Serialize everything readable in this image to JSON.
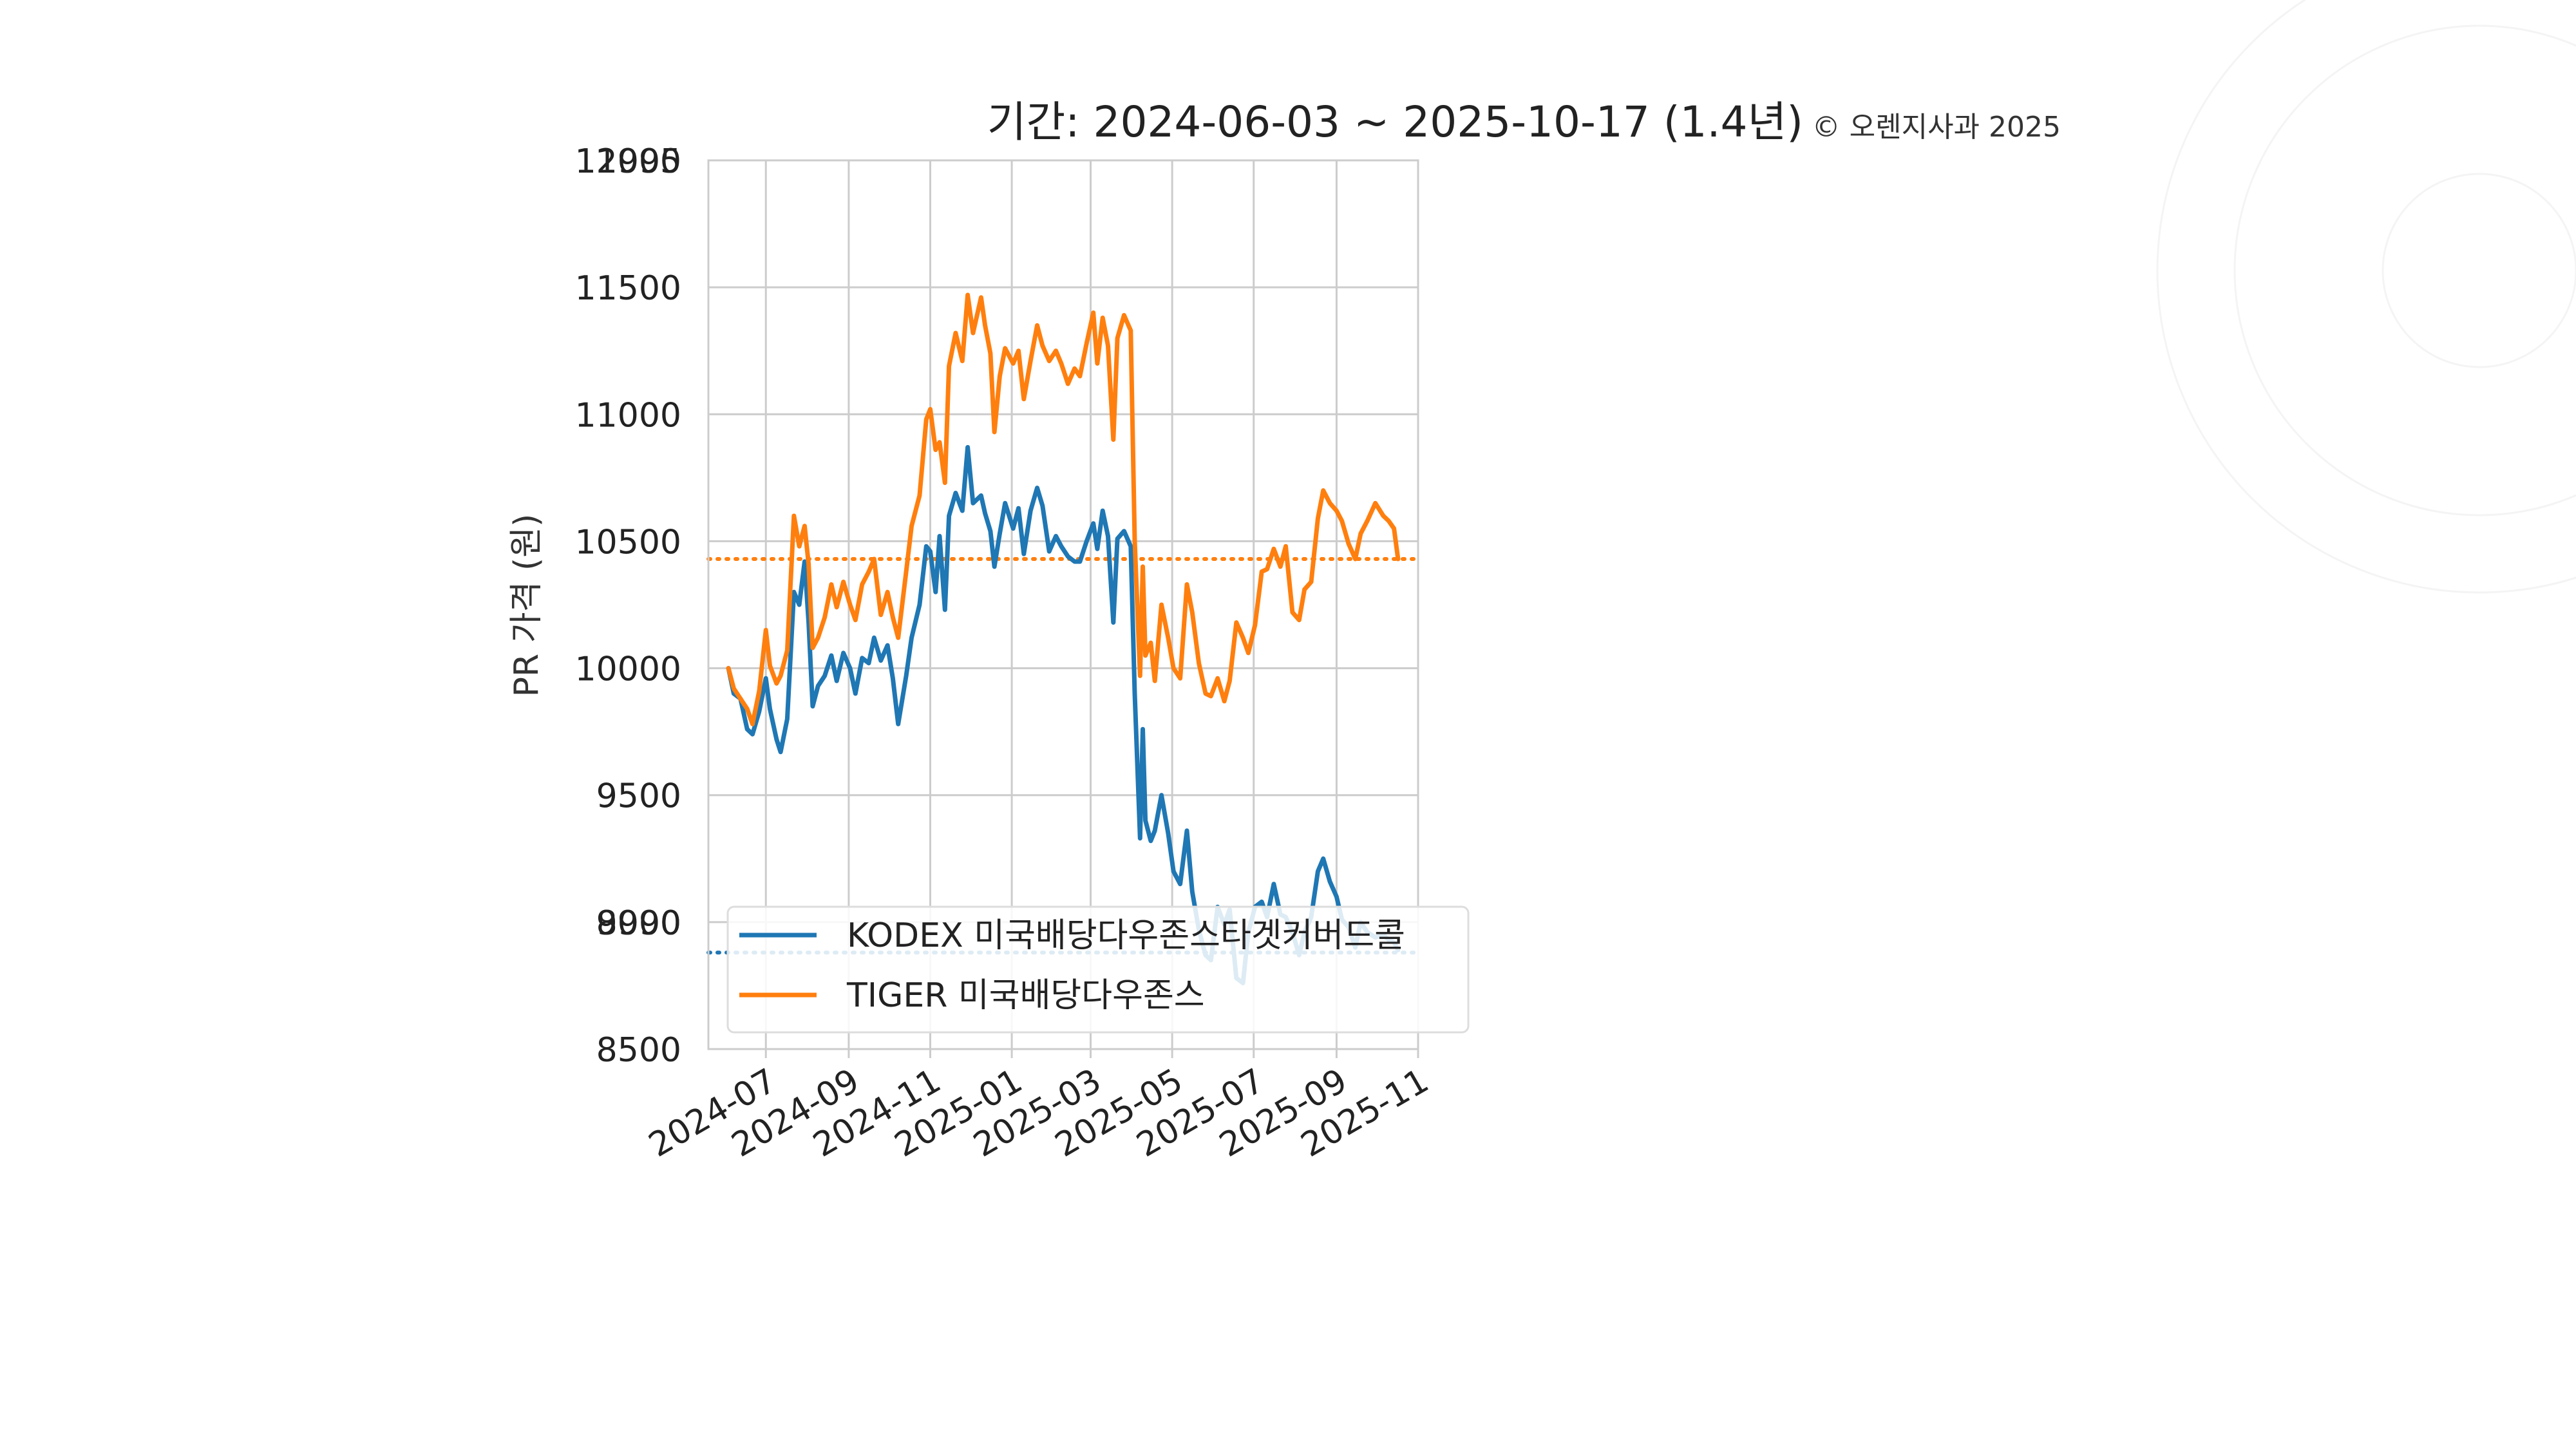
{
  "chart_data": {
    "type": "line",
    "title": "기간: 2024-06-03 ~ 2025-10-17 (1.4년)",
    "copyright": "© 오렌지사과 2025",
    "ylabel": "PR 가격 (원)",
    "xlabel": "",
    "ylim": [
      8500,
      12000
    ],
    "yticks": [
      8500,
      9000,
      9500,
      10000,
      10500,
      11000,
      11500,
      12000
    ],
    "ytick_labels": [
      "8500",
      "9000",
      "9500",
      "10000",
      "10500",
      "11000",
      "11500",
      "12000"
    ],
    "ytick_overlap_labels": [
      "8990",
      "11995"
    ],
    "xlim": [
      "2024-05-19",
      "2025-11-01"
    ],
    "xticks": [
      "2024-07-01",
      "2024-09-01",
      "2024-11-01",
      "2025-01-01",
      "2025-03-01",
      "2025-05-01",
      "2025-07-01",
      "2025-09-01",
      "2025-11-01"
    ],
    "xtick_labels": [
      "2024-07",
      "2024-09",
      "2024-11",
      "2025-01",
      "2025-03",
      "2025-05",
      "2025-07",
      "2025-09",
      "2025-11"
    ],
    "grid": true,
    "legend_position": "lower-left",
    "series": [
      {
        "name": "KODEX 미국배당다우존스타겟커버드콜",
        "color": "#1f77b4",
        "reference_value": 8880,
        "points": [
          [
            "2024-06-03",
            10000
          ],
          [
            "2024-06-07",
            9900
          ],
          [
            "2024-06-12",
            9880
          ],
          [
            "2024-06-17",
            9760
          ],
          [
            "2024-06-21",
            9740
          ],
          [
            "2024-06-26",
            9830
          ],
          [
            "2024-07-01",
            9960
          ],
          [
            "2024-07-04",
            9840
          ],
          [
            "2024-07-09",
            9720
          ],
          [
            "2024-07-12",
            9670
          ],
          [
            "2024-07-17",
            9800
          ],
          [
            "2024-07-22",
            10300
          ],
          [
            "2024-07-26",
            10250
          ],
          [
            "2024-07-30",
            10420
          ],
          [
            "2024-08-02",
            10180
          ],
          [
            "2024-08-05",
            9850
          ],
          [
            "2024-08-09",
            9930
          ],
          [
            "2024-08-14",
            9970
          ],
          [
            "2024-08-19",
            10050
          ],
          [
            "2024-08-23",
            9950
          ],
          [
            "2024-08-28",
            10060
          ],
          [
            "2024-09-02",
            10000
          ],
          [
            "2024-09-06",
            9900
          ],
          [
            "2024-09-11",
            10040
          ],
          [
            "2024-09-16",
            10020
          ],
          [
            "2024-09-20",
            10120
          ],
          [
            "2024-09-25",
            10030
          ],
          [
            "2024-09-30",
            10090
          ],
          [
            "2024-10-04",
            9960
          ],
          [
            "2024-10-08",
            9780
          ],
          [
            "2024-10-14",
            9970
          ],
          [
            "2024-10-18",
            10120
          ],
          [
            "2024-10-24",
            10250
          ],
          [
            "2024-10-29",
            10480
          ],
          [
            "2024-11-01",
            10460
          ],
          [
            "2024-11-05",
            10300
          ],
          [
            "2024-11-08",
            10520
          ],
          [
            "2024-11-12",
            10230
          ],
          [
            "2024-11-15",
            10600
          ],
          [
            "2024-11-20",
            10690
          ],
          [
            "2024-11-25",
            10620
          ],
          [
            "2024-11-29",
            10870
          ],
          [
            "2024-12-03",
            10650
          ],
          [
            "2024-12-09",
            10680
          ],
          [
            "2024-12-12",
            10610
          ],
          [
            "2024-12-16",
            10540
          ],
          [
            "2024-12-19",
            10400
          ],
          [
            "2024-12-23",
            10530
          ],
          [
            "2024-12-27",
            10650
          ],
          [
            "2025-01-02",
            10550
          ],
          [
            "2025-01-06",
            10630
          ],
          [
            "2025-01-10",
            10450
          ],
          [
            "2025-01-15",
            10620
          ],
          [
            "2025-01-20",
            10710
          ],
          [
            "2025-01-24",
            10640
          ],
          [
            "2025-01-29",
            10460
          ],
          [
            "2025-02-03",
            10520
          ],
          [
            "2025-02-07",
            10480
          ],
          [
            "2025-02-12",
            10440
          ],
          [
            "2025-02-17",
            10420
          ],
          [
            "2025-02-21",
            10420
          ],
          [
            "2025-02-26",
            10500
          ],
          [
            "2025-03-03",
            10570
          ],
          [
            "2025-03-06",
            10470
          ],
          [
            "2025-03-10",
            10620
          ],
          [
            "2025-03-14",
            10520
          ],
          [
            "2025-03-18",
            10180
          ],
          [
            "2025-03-21",
            10510
          ],
          [
            "2025-03-26",
            10540
          ],
          [
            "2025-03-31",
            10480
          ],
          [
            "2025-04-03",
            9900
          ],
          [
            "2025-04-07",
            9330
          ],
          [
            "2025-04-09",
            9760
          ],
          [
            "2025-04-11",
            9400
          ],
          [
            "2025-04-15",
            9320
          ],
          [
            "2025-04-18",
            9360
          ],
          [
            "2025-04-23",
            9500
          ],
          [
            "2025-04-28",
            9350
          ],
          [
            "2025-05-02",
            9200
          ],
          [
            "2025-05-07",
            9150
          ],
          [
            "2025-05-12",
            9360
          ],
          [
            "2025-05-16",
            9120
          ],
          [
            "2025-05-21",
            8970
          ],
          [
            "2025-05-26",
            8870
          ],
          [
            "2025-05-30",
            8850
          ],
          [
            "2025-06-04",
            9060
          ],
          [
            "2025-06-09",
            8990
          ],
          [
            "2025-06-13",
            9050
          ],
          [
            "2025-06-18",
            8780
          ],
          [
            "2025-06-23",
            8760
          ],
          [
            "2025-06-27",
            8960
          ],
          [
            "2025-07-02",
            9060
          ],
          [
            "2025-07-07",
            9080
          ],
          [
            "2025-07-11",
            9020
          ],
          [
            "2025-07-16",
            9150
          ],
          [
            "2025-07-21",
            9030
          ],
          [
            "2025-07-25",
            9020
          ],
          [
            "2025-07-30",
            8960
          ],
          [
            "2025-08-04",
            8870
          ],
          [
            "2025-08-08",
            8960
          ],
          [
            "2025-08-13",
            9020
          ],
          [
            "2025-08-18",
            9200
          ],
          [
            "2025-08-22",
            9250
          ],
          [
            "2025-08-27",
            9160
          ],
          [
            "2025-09-01",
            9100
          ],
          [
            "2025-09-05",
            9010
          ],
          [
            "2025-09-10",
            8980
          ],
          [
            "2025-09-15",
            8900
          ],
          [
            "2025-09-19",
            9000
          ],
          [
            "2025-09-24",
            8960
          ],
          [
            "2025-09-30",
            8940
          ],
          [
            "2025-10-06",
            8950
          ],
          [
            "2025-10-10",
            8930
          ],
          [
            "2025-10-14",
            8920
          ],
          [
            "2025-10-17",
            8890
          ]
        ]
      },
      {
        "name": "TIGER 미국배당다우존스",
        "color": "#ff7f0e",
        "reference_value": 10430,
        "points": [
          [
            "2024-06-03",
            10000
          ],
          [
            "2024-06-07",
            9920
          ],
          [
            "2024-06-12",
            9880
          ],
          [
            "2024-06-17",
            9840
          ],
          [
            "2024-06-21",
            9780
          ],
          [
            "2024-06-26",
            9910
          ],
          [
            "2024-07-01",
            10150
          ],
          [
            "2024-07-04",
            10010
          ],
          [
            "2024-07-09",
            9940
          ],
          [
            "2024-07-12",
            9970
          ],
          [
            "2024-07-17",
            10070
          ],
          [
            "2024-07-22",
            10600
          ],
          [
            "2024-07-26",
            10480
          ],
          [
            "2024-07-30",
            10560
          ],
          [
            "2024-08-02",
            10410
          ],
          [
            "2024-08-05",
            10080
          ],
          [
            "2024-08-09",
            10120
          ],
          [
            "2024-08-14",
            10200
          ],
          [
            "2024-08-19",
            10330
          ],
          [
            "2024-08-23",
            10240
          ],
          [
            "2024-08-28",
            10340
          ],
          [
            "2024-09-02",
            10250
          ],
          [
            "2024-09-06",
            10190
          ],
          [
            "2024-09-11",
            10330
          ],
          [
            "2024-09-16",
            10380
          ],
          [
            "2024-09-20",
            10430
          ],
          [
            "2024-09-25",
            10210
          ],
          [
            "2024-09-30",
            10300
          ],
          [
            "2024-10-04",
            10200
          ],
          [
            "2024-10-08",
            10120
          ],
          [
            "2024-10-14",
            10380
          ],
          [
            "2024-10-18",
            10560
          ],
          [
            "2024-10-24",
            10680
          ],
          [
            "2024-10-29",
            10980
          ],
          [
            "2024-11-01",
            11020
          ],
          [
            "2024-11-05",
            10860
          ],
          [
            "2024-11-08",
            10890
          ],
          [
            "2024-11-12",
            10730
          ],
          [
            "2024-11-15",
            11190
          ],
          [
            "2024-11-20",
            11320
          ],
          [
            "2024-11-25",
            11210
          ],
          [
            "2024-11-29",
            11470
          ],
          [
            "2024-12-03",
            11320
          ],
          [
            "2024-12-09",
            11460
          ],
          [
            "2024-12-12",
            11350
          ],
          [
            "2024-12-16",
            11240
          ],
          [
            "2024-12-19",
            10930
          ],
          [
            "2024-12-23",
            11150
          ],
          [
            "2024-12-27",
            11260
          ],
          [
            "2025-01-02",
            11200
          ],
          [
            "2025-01-06",
            11250
          ],
          [
            "2025-01-10",
            11060
          ],
          [
            "2025-01-15",
            11210
          ],
          [
            "2025-01-20",
            11350
          ],
          [
            "2025-01-24",
            11270
          ],
          [
            "2025-01-29",
            11210
          ],
          [
            "2025-02-03",
            11250
          ],
          [
            "2025-02-07",
            11200
          ],
          [
            "2025-02-12",
            11120
          ],
          [
            "2025-02-17",
            11180
          ],
          [
            "2025-02-21",
            11150
          ],
          [
            "2025-02-26",
            11280
          ],
          [
            "2025-03-03",
            11400
          ],
          [
            "2025-03-06",
            11200
          ],
          [
            "2025-03-10",
            11380
          ],
          [
            "2025-03-14",
            11270
          ],
          [
            "2025-03-18",
            10900
          ],
          [
            "2025-03-21",
            11300
          ],
          [
            "2025-03-26",
            11390
          ],
          [
            "2025-03-31",
            11330
          ],
          [
            "2025-04-03",
            10500
          ],
          [
            "2025-04-07",
            9970
          ],
          [
            "2025-04-09",
            10400
          ],
          [
            "2025-04-11",
            10050
          ],
          [
            "2025-04-15",
            10100
          ],
          [
            "2025-04-18",
            9950
          ],
          [
            "2025-04-23",
            10250
          ],
          [
            "2025-04-28",
            10120
          ],
          [
            "2025-05-02",
            10000
          ],
          [
            "2025-05-07",
            9960
          ],
          [
            "2025-05-12",
            10330
          ],
          [
            "2025-05-16",
            10220
          ],
          [
            "2025-05-21",
            10020
          ],
          [
            "2025-05-26",
            9900
          ],
          [
            "2025-05-30",
            9890
          ],
          [
            "2025-06-04",
            9960
          ],
          [
            "2025-06-09",
            9870
          ],
          [
            "2025-06-13",
            9950
          ],
          [
            "2025-06-18",
            10180
          ],
          [
            "2025-06-23",
            10120
          ],
          [
            "2025-06-27",
            10060
          ],
          [
            "2025-07-02",
            10170
          ],
          [
            "2025-07-07",
            10380
          ],
          [
            "2025-07-11",
            10390
          ],
          [
            "2025-07-16",
            10470
          ],
          [
            "2025-07-21",
            10400
          ],
          [
            "2025-07-25",
            10480
          ],
          [
            "2025-07-30",
            10220
          ],
          [
            "2025-08-04",
            10190
          ],
          [
            "2025-08-08",
            10310
          ],
          [
            "2025-08-13",
            10340
          ],
          [
            "2025-08-18",
            10590
          ],
          [
            "2025-08-22",
            10700
          ],
          [
            "2025-08-27",
            10650
          ],
          [
            "2025-09-01",
            10620
          ],
          [
            "2025-09-05",
            10580
          ],
          [
            "2025-09-10",
            10490
          ],
          [
            "2025-09-15",
            10430
          ],
          [
            "2025-09-19",
            10530
          ],
          [
            "2025-09-24",
            10580
          ],
          [
            "2025-09-30",
            10650
          ],
          [
            "2025-10-06",
            10600
          ],
          [
            "2025-10-10",
            10580
          ],
          [
            "2025-10-14",
            10550
          ],
          [
            "2025-10-17",
            10430
          ]
        ]
      }
    ]
  }
}
